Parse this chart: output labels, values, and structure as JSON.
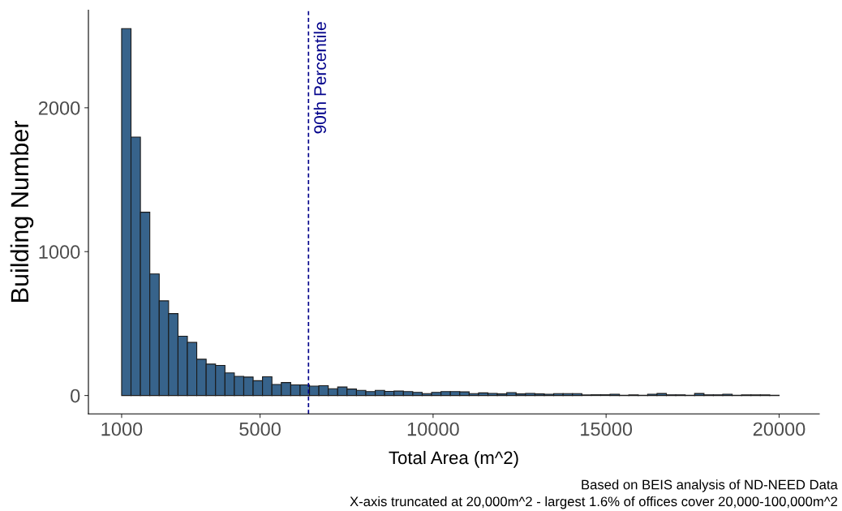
{
  "chart_data": {
    "type": "histogram",
    "xlabel": "Total Area (m^2)",
    "ylabel": "Building Number",
    "bins": [
      1000,
      1271,
      1543,
      1814,
      2086,
      2357,
      2629,
      2900,
      3171,
      3443,
      3714,
      3986,
      4257,
      4529,
      4800,
      5071,
      5343,
      5614,
      5886,
      6157,
      6429,
      6700,
      6971,
      7243,
      7514,
      7786,
      8057,
      8329,
      8600,
      8871,
      9143,
      9414,
      9686,
      9957,
      10229,
      10500,
      10771,
      11043,
      11314,
      11586,
      11857,
      12129,
      12400,
      12671,
      12943,
      13214,
      13486,
      13757,
      14029,
      14300,
      14571,
      14843,
      15114,
      15386,
      15657,
      15929,
      16200,
      16471,
      16743,
      17014,
      17286,
      17557,
      17829,
      18100,
      18371,
      18643,
      18914,
      19186,
      19457,
      19729,
      20000
    ],
    "values": [
      2550,
      1796,
      1274,
      845,
      658,
      569,
      412,
      369,
      252,
      218,
      209,
      157,
      133,
      128,
      103,
      130,
      77,
      90,
      74,
      74,
      65,
      68,
      47,
      59,
      45,
      36,
      27,
      36,
      29,
      31,
      27,
      22,
      13,
      22,
      27,
      27,
      25,
      13,
      18,
      15,
      11,
      20,
      11,
      15,
      11,
      9,
      13,
      13,
      13,
      4,
      5,
      5,
      9,
      2,
      4,
      2,
      9,
      14,
      5,
      5,
      1,
      14,
      5,
      5,
      9,
      2,
      4,
      4,
      4,
      1
    ],
    "color": "#37638b",
    "xlim": [
      40,
      21160
    ],
    "xticks": [
      1000,
      5000,
      10000,
      15000,
      20000
    ],
    "ylim": [
      -128,
      2678
    ],
    "yticks": [
      0,
      1000,
      2000
    ],
    "grid": false,
    "ref_lines": [
      {
        "axis": "x",
        "value": 6400,
        "label": "90th Percentile",
        "color": "#00008b",
        "line_style": "dashed"
      }
    ],
    "annotations": [
      "Based on BEIS analysis of ND-NEED Data",
      "X-axis truncated at 20,000m^2 - largest 1.6% of offices cover 20,000-100,000m^2"
    ]
  }
}
